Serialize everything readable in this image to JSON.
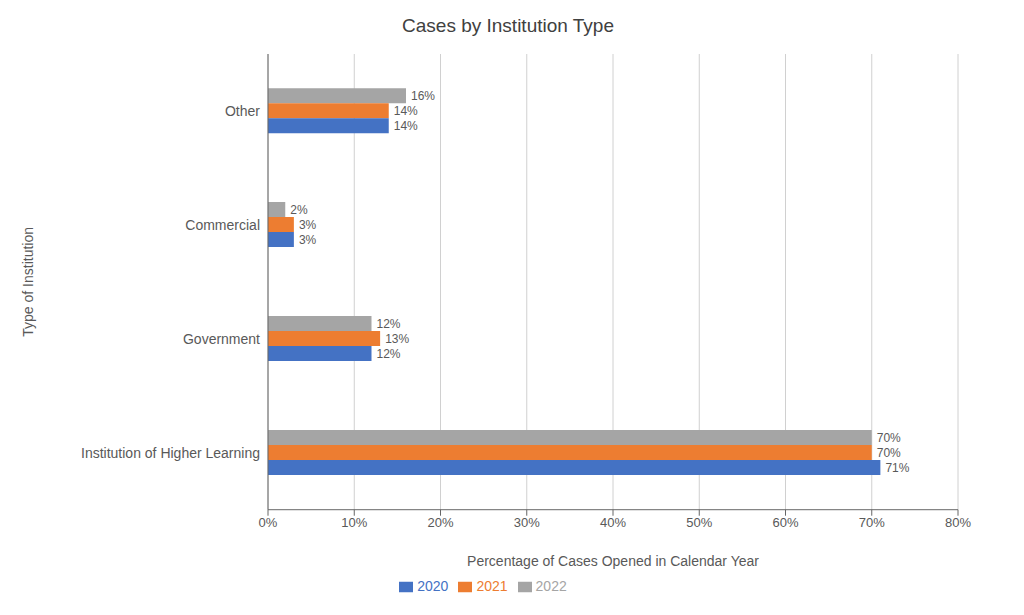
{
  "chart_data": {
    "type": "bar",
    "orientation": "horizontal",
    "title": "Cases by Institution Type",
    "xlabel": "Percentage of Cases Opened in Calendar Year",
    "ylabel": "Type of Institution",
    "categories": [
      "Institution of Higher Learning",
      "Government",
      "Commercial",
      "Other"
    ],
    "series": [
      {
        "name": "2022",
        "color": "#A5A5A5",
        "values": [
          70,
          12,
          2,
          16
        ],
        "value_labels": [
          "70%",
          "12%",
          "2%",
          "16%"
        ]
      },
      {
        "name": "2021",
        "color": "#ED7D31",
        "values": [
          70,
          13,
          3,
          14
        ],
        "value_labels": [
          "70%",
          "13%",
          "3%",
          "14%"
        ]
      },
      {
        "name": "2020",
        "color": "#4472C4",
        "values": [
          71,
          12,
          3,
          14
        ],
        "value_labels": [
          "71%",
          "12%",
          "3%",
          "14%"
        ]
      }
    ],
    "xlim": [
      0,
      80
    ],
    "xticks": [
      {
        "value": 0,
        "label": "0%"
      },
      {
        "value": 10,
        "label": "10%"
      },
      {
        "value": 20,
        "label": "20%"
      },
      {
        "value": 30,
        "label": "30%"
      },
      {
        "value": 40,
        "label": "40%"
      },
      {
        "value": 50,
        "label": "50%"
      },
      {
        "value": 60,
        "label": "60%"
      },
      {
        "value": 70,
        "label": "70%"
      },
      {
        "value": 80,
        "label": "80%"
      }
    ],
    "grid": true,
    "legend": "bottom",
    "data_labels": true
  }
}
